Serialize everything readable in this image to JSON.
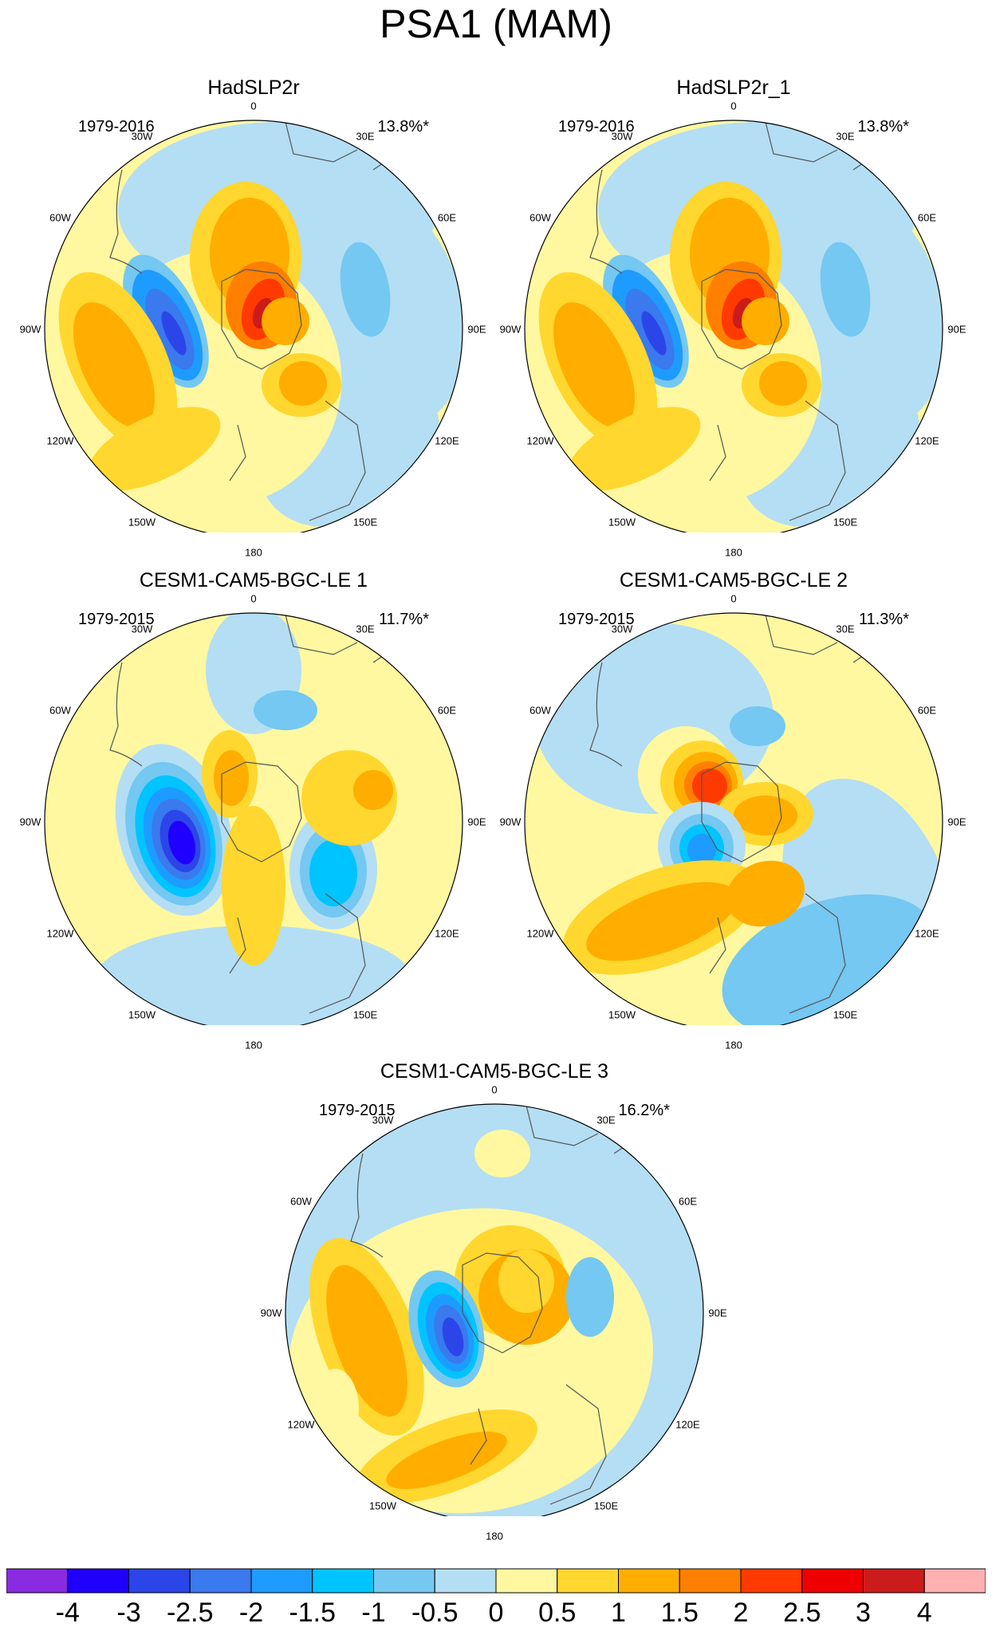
{
  "title": "PSA1 (MAM)",
  "panels": [
    {
      "title": "HadSLP2r",
      "period": "1979-2016",
      "percent": "13.8%*"
    },
    {
      "title": "HadSLP2r_1",
      "period": "1979-2016",
      "percent": "13.8%*"
    },
    {
      "title": "CESM1-CAM5-BGC-LE 1",
      "period": "1979-2015",
      "percent": "11.7%*"
    },
    {
      "title": "CESM1-CAM5-BGC-LE 2",
      "period": "1979-2015",
      "percent": "11.3%*"
    },
    {
      "title": "CESM1-CAM5-BGC-LE 3",
      "period": "1979-2015",
      "percent": "16.2%*"
    }
  ],
  "longitude_labels": [
    "0",
    "30E",
    "60E",
    "90E",
    "120E",
    "150E",
    "180",
    "150W",
    "120W",
    "90W",
    "60W",
    "30W"
  ],
  "colorbar": {
    "labels": [
      "-4",
      "-3",
      "-2.5",
      "-2",
      "-1.5",
      "-1",
      "-0.5",
      "0",
      "0.5",
      "1",
      "1.5",
      "2",
      "2.5",
      "3",
      "4"
    ],
    "colors": [
      "#8a2be2",
      "#1f00ff",
      "#2c45e8",
      "#3a79ee",
      "#1e9bff",
      "#00c4ff",
      "#74c8f1",
      "#b4def4",
      "#fff8a0",
      "#ffd72e",
      "#ffae00",
      "#ff7f00",
      "#ff3a00",
      "#ee0000",
      "#cc1b1b",
      "#ffb0b0"
    ]
  },
  "colors": {
    "ocean_neg": "#b4def4",
    "pos_light": "#fff8a0",
    "coast": "#555555"
  }
}
